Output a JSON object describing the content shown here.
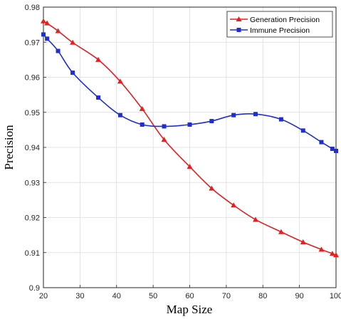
{
  "chart_data": {
    "type": "line",
    "xlabel": "Map Size",
    "ylabel": "Precision",
    "xlim": [
      20,
      100
    ],
    "ylim": [
      0.9,
      0.98
    ],
    "xticks": [
      "20",
      "30",
      "40",
      "50",
      "60",
      "70",
      "80",
      "90",
      "100"
    ],
    "yticks": [
      "0.9",
      "0.91",
      "0.92",
      "0.93",
      "0.94",
      "0.95",
      "0.96",
      "0.97",
      "0.98"
    ],
    "grid": true,
    "legend_position": "top-right",
    "series": [
      {
        "name": "Generation Precision",
        "color": "#e41f1f",
        "marker": "triangle",
        "x": [
          20,
          21,
          24,
          28,
          35,
          41,
          47,
          53,
          60,
          66,
          72,
          78,
          85,
          91,
          96,
          99,
          100
        ],
        "y": [
          0.976,
          0.9754,
          0.9732,
          0.9699,
          0.965,
          0.9588,
          0.951,
          0.9422,
          0.9345,
          0.9283,
          0.9235,
          0.9194,
          0.9159,
          0.913,
          0.9109,
          0.9097,
          0.9093
        ]
      },
      {
        "name": "Immune Precision",
        "color": "#1f2fcf",
        "marker": "square",
        "x": [
          20,
          21,
          24,
          28,
          35,
          41,
          47,
          53,
          60,
          66,
          72,
          78,
          85,
          91,
          96,
          99,
          100
        ],
        "y": [
          0.9722,
          0.971,
          0.9675,
          0.9613,
          0.9542,
          0.9492,
          0.9465,
          0.946,
          0.9465,
          0.9475,
          0.9492,
          0.9495,
          0.948,
          0.9448,
          0.9415,
          0.9396,
          0.939
        ]
      }
    ]
  }
}
